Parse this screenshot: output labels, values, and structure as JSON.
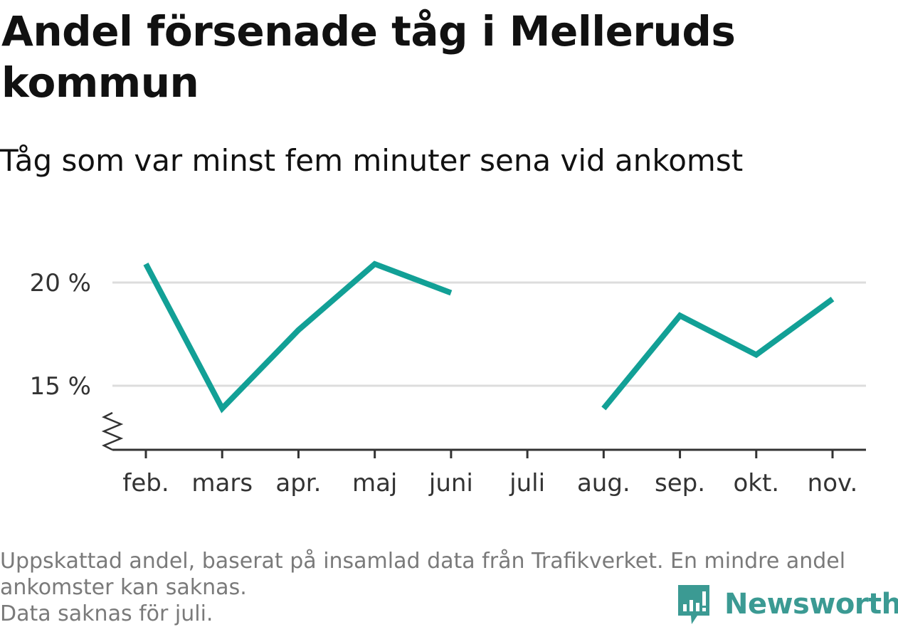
{
  "title": "Andel försenade tåg i Melleruds kommun",
  "subtitle": "Tåg som var minst fem minuter sena vid ankomst",
  "footer": {
    "note_line1": "Uppskattad andel, baserat på insamlad data från Trafikverket. En mindre andel",
    "note_line2": "ankomster kan saknas.",
    "note_line3": "Data saknas för juli."
  },
  "brand": {
    "name": "Newsworthy",
    "icon": "newsworthy-logo-icon",
    "color": "#3b9a93"
  },
  "colors": {
    "line": "#12a096",
    "grid": "#dddddd",
    "axis": "#333333"
  },
  "chart_data": {
    "type": "line",
    "categories": [
      "feb.",
      "mars",
      "apr.",
      "maj",
      "juni",
      "juli",
      "aug.",
      "sep.",
      "okt.",
      "nov."
    ],
    "series": [
      {
        "values": [
          20.9,
          13.9,
          17.7,
          20.9,
          19.5,
          null,
          13.9,
          18.4,
          16.5,
          19.2
        ]
      }
    ],
    "yticks": [
      {
        "value": 15,
        "label": "15 %"
      },
      {
        "value": 20,
        "label": "20 %"
      }
    ],
    "ylim": [
      12,
      22
    ],
    "y_axis_break": true,
    "grid": true,
    "xlabel": "",
    "ylabel": ""
  }
}
